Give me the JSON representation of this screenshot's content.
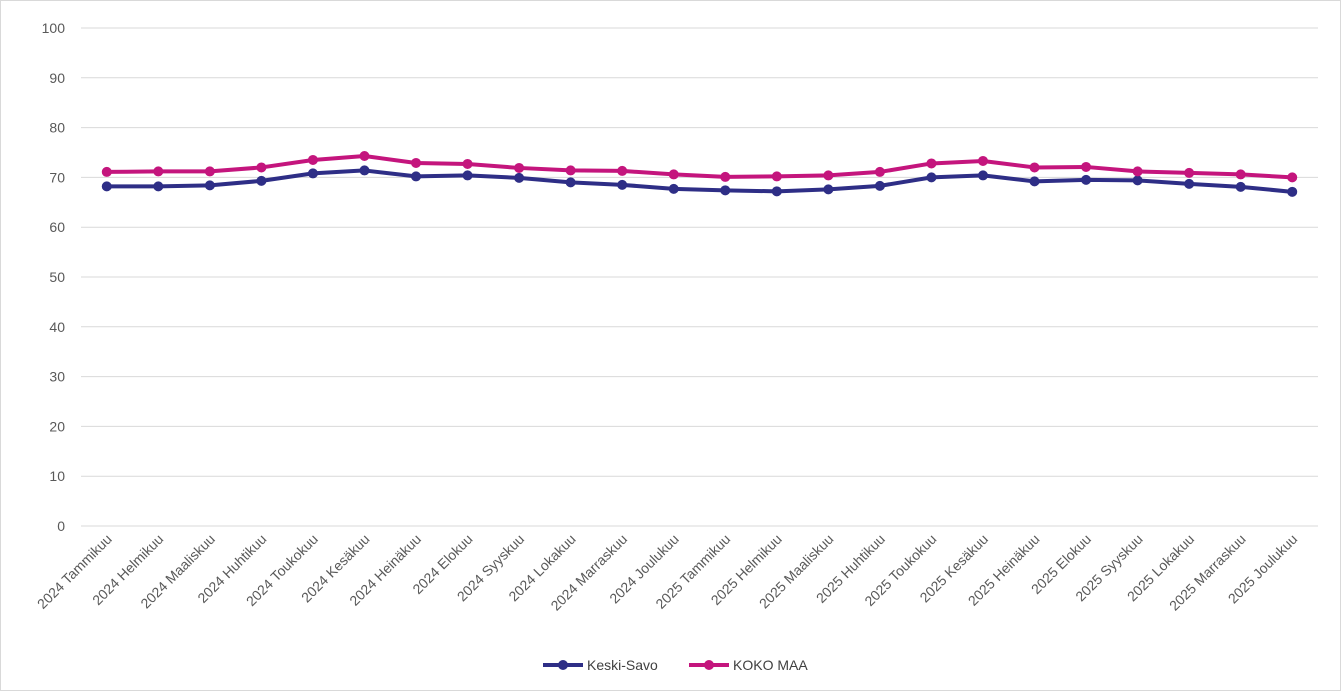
{
  "chart_data": {
    "type": "line",
    "title": "",
    "xlabel": "",
    "ylabel": "",
    "ylim": [
      0,
      100
    ],
    "yticks": [
      0,
      10,
      20,
      30,
      40,
      50,
      60,
      70,
      80,
      90,
      100
    ],
    "grid": true,
    "legend": "bottom-center",
    "categories": [
      "2024 Tammikuu",
      "2024 Helmikuu",
      "2024 Maaliskuu",
      "2024 Huhtikuu",
      "2024 Toukokuu",
      "2024 Kesäkuu",
      "2024 Heinäkuu",
      "2024 Elokuu",
      "2024 Syyskuu",
      "2024 Lokakuu",
      "2024 Marraskuu",
      "2024 Joulukuu",
      "2025 Tammikuu",
      "2025 Helmikuu",
      "2025 Maaliskuu",
      "2025 Huhtikuu",
      "2025 Toukokuu",
      "2025 Kesäkuu",
      "2025 Heinäkuu",
      "2025 Elokuu",
      "2025 Syyskuu",
      "2025 Lokakuu",
      "2025 Marraskuu",
      "2025 Joulukuu"
    ],
    "series": [
      {
        "name": "Keski-Savo",
        "color": "#2E2E86",
        "values": [
          68.2,
          68.2,
          68.4,
          69.3,
          70.8,
          71.4,
          70.2,
          70.4,
          69.9,
          69.0,
          68.5,
          67.7,
          67.4,
          67.2,
          67.6,
          68.3,
          70.0,
          70.4,
          69.2,
          69.5,
          69.4,
          68.7,
          68.1,
          67.1
        ]
      },
      {
        "name": "KOKO MAA",
        "color": "#C4157D",
        "values": [
          71.1,
          71.2,
          71.2,
          72.0,
          73.5,
          74.3,
          72.9,
          72.7,
          71.9,
          71.4,
          71.3,
          70.6,
          70.1,
          70.2,
          70.4,
          71.1,
          72.8,
          73.3,
          72.0,
          72.1,
          71.2,
          70.9,
          70.6,
          70.0
        ]
      }
    ]
  }
}
